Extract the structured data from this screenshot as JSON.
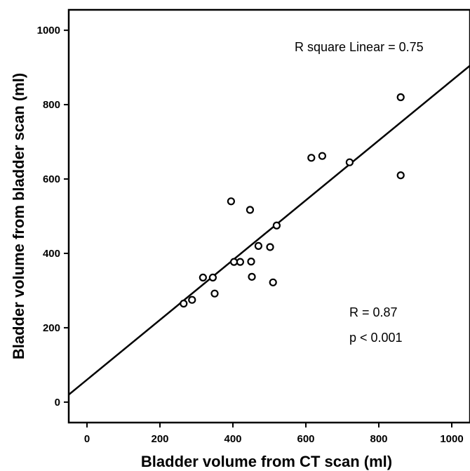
{
  "chart_data": {
    "type": "scatter",
    "title": "",
    "xlabel": "Bladder volume from CT scan (ml)",
    "ylabel": "Bladder volume from bladder scan (ml)",
    "xlim": [
      -50,
      1050
    ],
    "ylim": [
      -55,
      1055
    ],
    "xticks": [
      0,
      200,
      400,
      600,
      800,
      1000
    ],
    "yticks": [
      0,
      200,
      400,
      600,
      800,
      1000
    ],
    "xtick_labels": [
      "0",
      "200",
      "400",
      "600",
      "800",
      "1000"
    ],
    "ytick_labels": [
      "0",
      "200",
      "400",
      "600",
      "800",
      "1000"
    ],
    "marker": "open-circle",
    "grid": false,
    "series": [
      {
        "points": [
          {
            "x": 265,
            "y": 265
          },
          {
            "x": 288,
            "y": 275
          },
          {
            "x": 318,
            "y": 335
          },
          {
            "x": 345,
            "y": 335
          },
          {
            "x": 350,
            "y": 292
          },
          {
            "x": 395,
            "y": 540
          },
          {
            "x": 403,
            "y": 377
          },
          {
            "x": 420,
            "y": 377
          },
          {
            "x": 447,
            "y": 517
          },
          {
            "x": 450,
            "y": 378
          },
          {
            "x": 452,
            "y": 337
          },
          {
            "x": 470,
            "y": 420
          },
          {
            "x": 502,
            "y": 417
          },
          {
            "x": 510,
            "y": 322
          },
          {
            "x": 520,
            "y": 475
          },
          {
            "x": 615,
            "y": 657
          },
          {
            "x": 645,
            "y": 662
          },
          {
            "x": 720,
            "y": 645
          },
          {
            "x": 860,
            "y": 820
          },
          {
            "x": 860,
            "y": 610
          }
        ]
      }
    ],
    "fit_line": {
      "type": "linear",
      "x": [
        -50,
        1050
      ],
      "y": [
        20,
        905
      ]
    },
    "annotations": {
      "r_square": "R square Linear = 0.75",
      "r": "R = 0.87",
      "p": "p < 0.001"
    }
  }
}
